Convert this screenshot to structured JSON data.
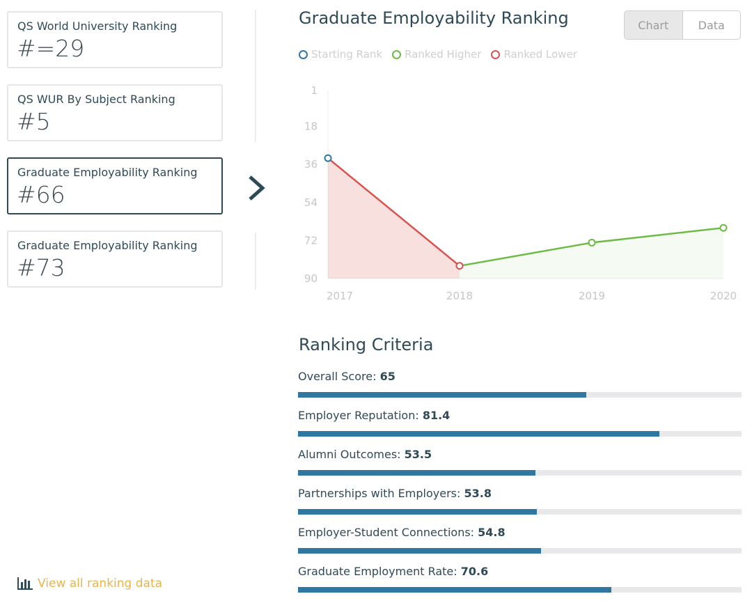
{
  "cards": [
    {
      "label": "QS World University Ranking",
      "value": "#=29"
    },
    {
      "label": "QS WUR By Subject Ranking",
      "value": "#5"
    },
    {
      "label": "Graduate Employability Ranking",
      "value": "#66"
    },
    {
      "label": "Graduate Employability Ranking",
      "value": "#73"
    }
  ],
  "chart_panel": {
    "title": "Graduate Employability Ranking",
    "toggle": {
      "chart_label": "Chart",
      "data_label": "Data",
      "selected": "Chart"
    },
    "legend": [
      {
        "label": "Starting Rank",
        "color": "#2f76a0"
      },
      {
        "label": "Ranked Higher",
        "color": "#6dbb45"
      },
      {
        "label": "Ranked Lower",
        "color": "#d9534f"
      }
    ]
  },
  "chart_data": {
    "type": "line",
    "x": [
      "2017",
      "2018",
      "2019",
      "2020"
    ],
    "series": [
      {
        "values": [
          33,
          84,
          73,
          66
        ]
      }
    ],
    "y_ticks": [
      "1",
      "18",
      "36",
      "54",
      "72",
      "90"
    ],
    "ylim": [
      1,
      90
    ],
    "y_reversed": true,
    "colors": {
      "start": "#2f76a0",
      "higher": "#6dbb45",
      "lower": "#d9534f"
    }
  },
  "criteria": {
    "title": "Ranking Criteria",
    "items": [
      {
        "label": "Overall Score: ",
        "value": "65",
        "score": 65
      },
      {
        "label": "Employer Reputation: ",
        "value": "81.4",
        "score": 81.4
      },
      {
        "label": "Alumni Outcomes: ",
        "value": "53.5",
        "score": 53.5
      },
      {
        "label": "Partnerships with Employers: ",
        "value": "53.8",
        "score": 53.8
      },
      {
        "label": "Employer-Student Connections: ",
        "value": "54.8",
        "score": 54.8
      },
      {
        "label": "Graduate Employment Rate: ",
        "value": "70.6",
        "score": 70.6
      }
    ],
    "bar_color": "#2f76a0"
  },
  "footer": {
    "view_all_label": "View all ranking data",
    "icon": "bar-chart-icon"
  }
}
